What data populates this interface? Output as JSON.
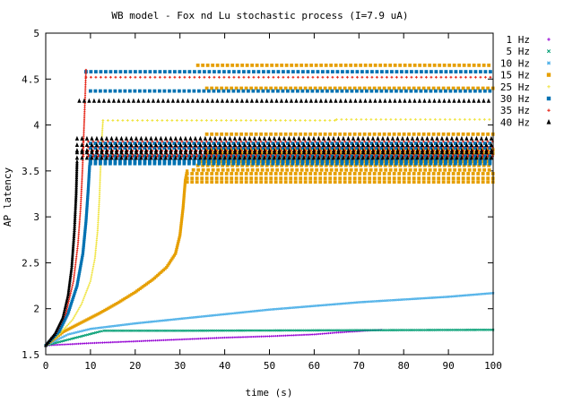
{
  "chart_data": {
    "type": "scatter",
    "title": "WB model - Fox nd Lu stochastic process (I=7.9 uA)",
    "xlabel": "time (s)",
    "ylabel": "AP latency",
    "xlim": [
      0,
      100
    ],
    "ylim": [
      1.5,
      5
    ],
    "x_ticks": [
      "0",
      "10",
      "20",
      "30",
      "40",
      "50",
      "60",
      "70",
      "80",
      "90",
      "100"
    ],
    "y_ticks": [
      "1.5",
      "2",
      "2.5",
      "3",
      "3.5",
      "4",
      "4.5",
      "5"
    ],
    "grid": false,
    "legend_position": "right",
    "series": [
      {
        "name": "1 Hz",
        "color": "#9400d3",
        "marker": "plus",
        "curve": [
          [
            0,
            1.6
          ],
          [
            10,
            1.625
          ],
          [
            20,
            1.645
          ],
          [
            30,
            1.665
          ],
          [
            40,
            1.685
          ],
          [
            50,
            1.7
          ],
          [
            60,
            1.72
          ],
          [
            65,
            1.74
          ],
          [
            75,
            1.77
          ]
        ],
        "branches": []
      },
      {
        "name": "5 Hz",
        "color": "#009e73",
        "marker": "cross",
        "curve": [
          [
            0,
            1.6
          ],
          [
            4,
            1.65
          ],
          [
            8,
            1.7
          ],
          [
            12,
            1.75
          ],
          [
            13,
            1.76
          ],
          [
            30,
            1.76
          ],
          [
            64,
            1.765
          ],
          [
            100,
            1.77
          ]
        ],
        "branches": []
      },
      {
        "name": "10 Hz",
        "color": "#56b4e9",
        "marker": "asterisk",
        "curve": [
          [
            0,
            1.6
          ],
          [
            5,
            1.72
          ],
          [
            10,
            1.78
          ],
          [
            20,
            1.84
          ],
          [
            30,
            1.89
          ],
          [
            40,
            1.94
          ],
          [
            50,
            1.99
          ],
          [
            60,
            2.03
          ],
          [
            70,
            2.07
          ],
          [
            80,
            2.1
          ],
          [
            90,
            2.13
          ],
          [
            100,
            2.17
          ]
        ],
        "branches": []
      },
      {
        "name": "15 Hz",
        "color": "#e69f00",
        "marker": "square",
        "curve": [
          [
            0,
            1.6
          ],
          [
            4,
            1.75
          ],
          [
            8,
            1.85
          ],
          [
            12,
            1.95
          ],
          [
            16,
            2.06
          ],
          [
            20,
            2.18
          ],
          [
            24,
            2.32
          ],
          [
            27,
            2.45
          ],
          [
            29,
            2.6
          ],
          [
            30,
            2.8
          ],
          [
            30.7,
            3.1
          ],
          [
            31.2,
            3.4
          ],
          [
            31.6,
            3.5
          ]
        ],
        "branches": [
          {
            "y": 3.38,
            "from": 31.6,
            "to": 100
          },
          {
            "y": 3.42,
            "from": 31.6,
            "to": 100
          },
          {
            "y": 3.47,
            "from": 31.6,
            "to": 100
          },
          {
            "y": 3.51,
            "from": 33,
            "to": 100
          },
          {
            "y": 3.56,
            "from": 34,
            "to": 100
          },
          {
            "y": 3.6,
            "from": 35,
            "to": 100
          },
          {
            "y": 3.65,
            "from": 35,
            "to": 100
          },
          {
            "y": 3.69,
            "from": 36,
            "to": 100
          },
          {
            "y": 3.73,
            "from": 36,
            "to": 100
          },
          {
            "y": 3.9,
            "from": 36,
            "to": 100
          },
          {
            "y": 4.4,
            "from": 36,
            "to": 100
          },
          {
            "y": 4.65,
            "from": 34,
            "to": 100
          }
        ]
      },
      {
        "name": "25 Hz",
        "color": "#f0e442",
        "marker": "plus",
        "curve": [
          [
            0,
            1.6
          ],
          [
            3,
            1.72
          ],
          [
            6,
            1.88
          ],
          [
            8,
            2.05
          ],
          [
            10,
            2.3
          ],
          [
            11,
            2.55
          ],
          [
            11.6,
            2.85
          ],
          [
            12,
            3.2
          ],
          [
            12.3,
            3.6
          ],
          [
            12.6,
            3.9
          ],
          [
            12.8,
            4.05
          ]
        ],
        "branches": [
          {
            "y": 4.05,
            "from": 12.8,
            "to": 65
          },
          {
            "y": 4.06,
            "from": 65,
            "to": 100
          },
          {
            "y": 3.68,
            "from": 12.5,
            "to": 100
          },
          {
            "y": 3.7,
            "from": 12.5,
            "to": 100
          }
        ]
      },
      {
        "name": "30 Hz",
        "color": "#0072b2",
        "marker": "square",
        "curve": [
          [
            0,
            1.6
          ],
          [
            3,
            1.75
          ],
          [
            5,
            1.95
          ],
          [
            7,
            2.25
          ],
          [
            8.3,
            2.6
          ],
          [
            9,
            2.95
          ],
          [
            9.5,
            3.3
          ],
          [
            9.8,
            3.55
          ],
          [
            10,
            3.65
          ]
        ],
        "branches": [
          {
            "y": 3.58,
            "from": 10,
            "to": 100
          },
          {
            "y": 3.6,
            "from": 10,
            "to": 100
          },
          {
            "y": 3.62,
            "from": 10,
            "to": 100
          },
          {
            "y": 3.66,
            "from": 10,
            "to": 100
          },
          {
            "y": 3.75,
            "from": 10,
            "to": 100
          },
          {
            "y": 3.8,
            "from": 10,
            "to": 100
          },
          {
            "y": 4.37,
            "from": 10,
            "to": 100
          },
          {
            "y": 4.58,
            "from": 9,
            "to": 100
          }
        ]
      },
      {
        "name": "35 Hz",
        "color": "#e51e10",
        "marker": "plus",
        "curve": [
          [
            0,
            1.6
          ],
          [
            2.5,
            1.75
          ],
          [
            4.5,
            1.95
          ],
          [
            6.2,
            2.3
          ],
          [
            7.2,
            2.7
          ],
          [
            7.8,
            3.1
          ],
          [
            8.2,
            3.5
          ],
          [
            8.5,
            3.9
          ],
          [
            8.8,
            4.3
          ],
          [
            9,
            4.6
          ]
        ],
        "branches": [
          {
            "y": 3.66,
            "from": 8.4,
            "to": 100
          },
          {
            "y": 3.68,
            "from": 8.4,
            "to": 100
          },
          {
            "y": 3.72,
            "from": 8.4,
            "to": 100
          },
          {
            "y": 3.76,
            "from": 8.4,
            "to": 100
          },
          {
            "y": 3.82,
            "from": 8.4,
            "to": 100
          },
          {
            "y": 4.52,
            "from": 9,
            "to": 100
          }
        ]
      },
      {
        "name": "40 Hz",
        "color": "#000000",
        "marker": "triangle",
        "curve": [
          [
            0,
            1.6
          ],
          [
            2,
            1.72
          ],
          [
            3.8,
            1.9
          ],
          [
            5,
            2.15
          ],
          [
            5.8,
            2.45
          ],
          [
            6.4,
            2.85
          ],
          [
            6.8,
            3.25
          ],
          [
            7,
            3.6
          ]
        ],
        "branches": [
          {
            "y": 3.64,
            "from": 7,
            "to": 100
          },
          {
            "y": 3.7,
            "from": 7,
            "to": 100
          },
          {
            "y": 3.72,
            "from": 7,
            "to": 100
          },
          {
            "y": 3.78,
            "from": 7,
            "to": 100
          },
          {
            "y": 3.85,
            "from": 7,
            "to": 100
          },
          {
            "y": 4.26,
            "from": 7.5,
            "to": 100
          }
        ]
      }
    ]
  }
}
